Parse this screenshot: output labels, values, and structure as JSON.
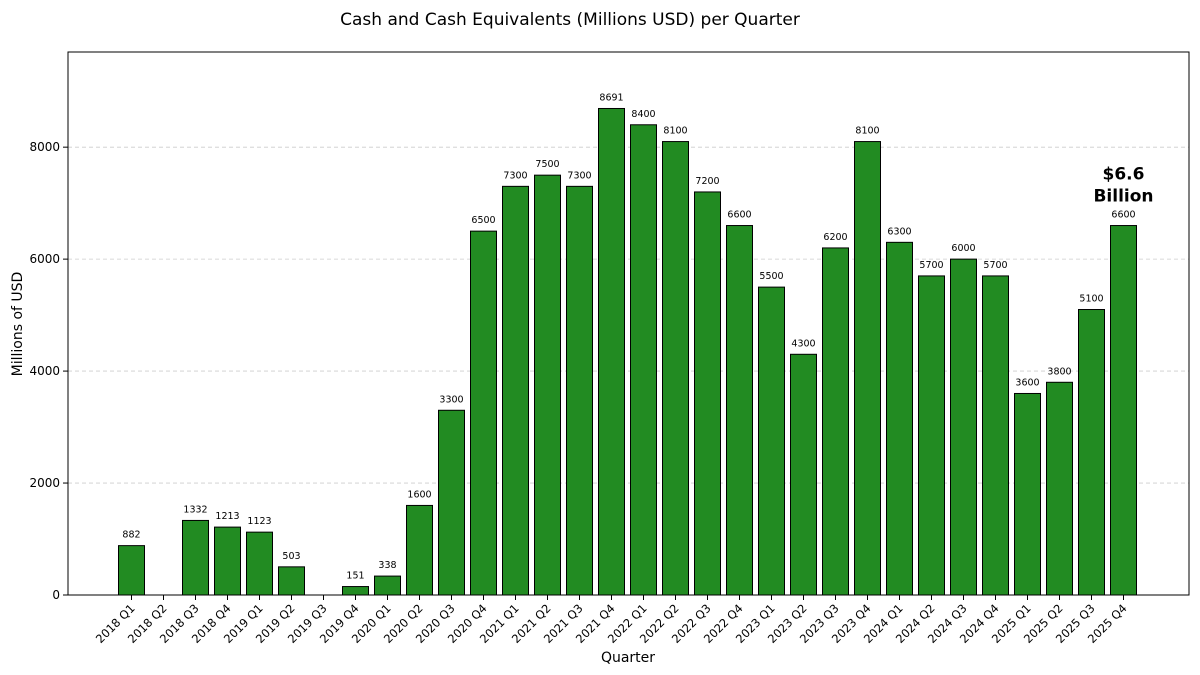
{
  "chart_data": {
    "type": "bar",
    "title": "Cash and Cash Equivalents (Millions USD) per Quarter",
    "xlabel": "Quarter",
    "ylabel": "Millions of USD",
    "ylim": [
      0,
      9700
    ],
    "yticks": [
      0,
      2000,
      4000,
      6000,
      8000
    ],
    "grid": true,
    "bar_color": "#228B22",
    "categories": [
      "2018 Q1",
      "2018 Q2",
      "2018 Q3",
      "2018 Q4",
      "2019 Q1",
      "2019 Q2",
      "2019 Q3",
      "2019 Q4",
      "2020 Q1",
      "2020 Q2",
      "2020 Q3",
      "2020 Q4",
      "2021 Q1",
      "2021 Q2",
      "2021 Q3",
      "2021 Q4",
      "2022 Q1",
      "2022 Q2",
      "2022 Q3",
      "2022 Q4",
      "2023 Q1",
      "2023 Q2",
      "2023 Q3",
      "2023 Q4",
      "2024 Q1",
      "2024 Q2",
      "2024 Q3",
      "2024 Q4",
      "2025 Q1",
      "2025 Q2",
      "2025 Q3",
      "2025 Q4"
    ],
    "values": [
      882,
      0,
      1332,
      1213,
      1123,
      503,
      0,
      151,
      338,
      1600,
      3300,
      6500,
      7300,
      7500,
      7300,
      8691,
      8400,
      8100,
      7200,
      6600,
      5500,
      4300,
      6200,
      8100,
      6300,
      5700,
      6000,
      5700,
      3600,
      3800,
      5100,
      6600
    ],
    "data_labels": [
      "882",
      "",
      "1332",
      "1213",
      "1123",
      "503",
      "",
      "151",
      "338",
      "1600",
      "3300",
      "6500",
      "7300",
      "7500",
      "7300",
      "8691",
      "8400",
      "8100",
      "7200",
      "6600",
      "5500",
      "4300",
      "6200",
      "8100",
      "6300",
      "5700",
      "6000",
      "5700",
      "3600",
      "3800",
      "5100",
      "6600"
    ],
    "annotation": {
      "category": "2025 Q4",
      "lines": [
        "$6.6",
        "Billion"
      ]
    }
  }
}
